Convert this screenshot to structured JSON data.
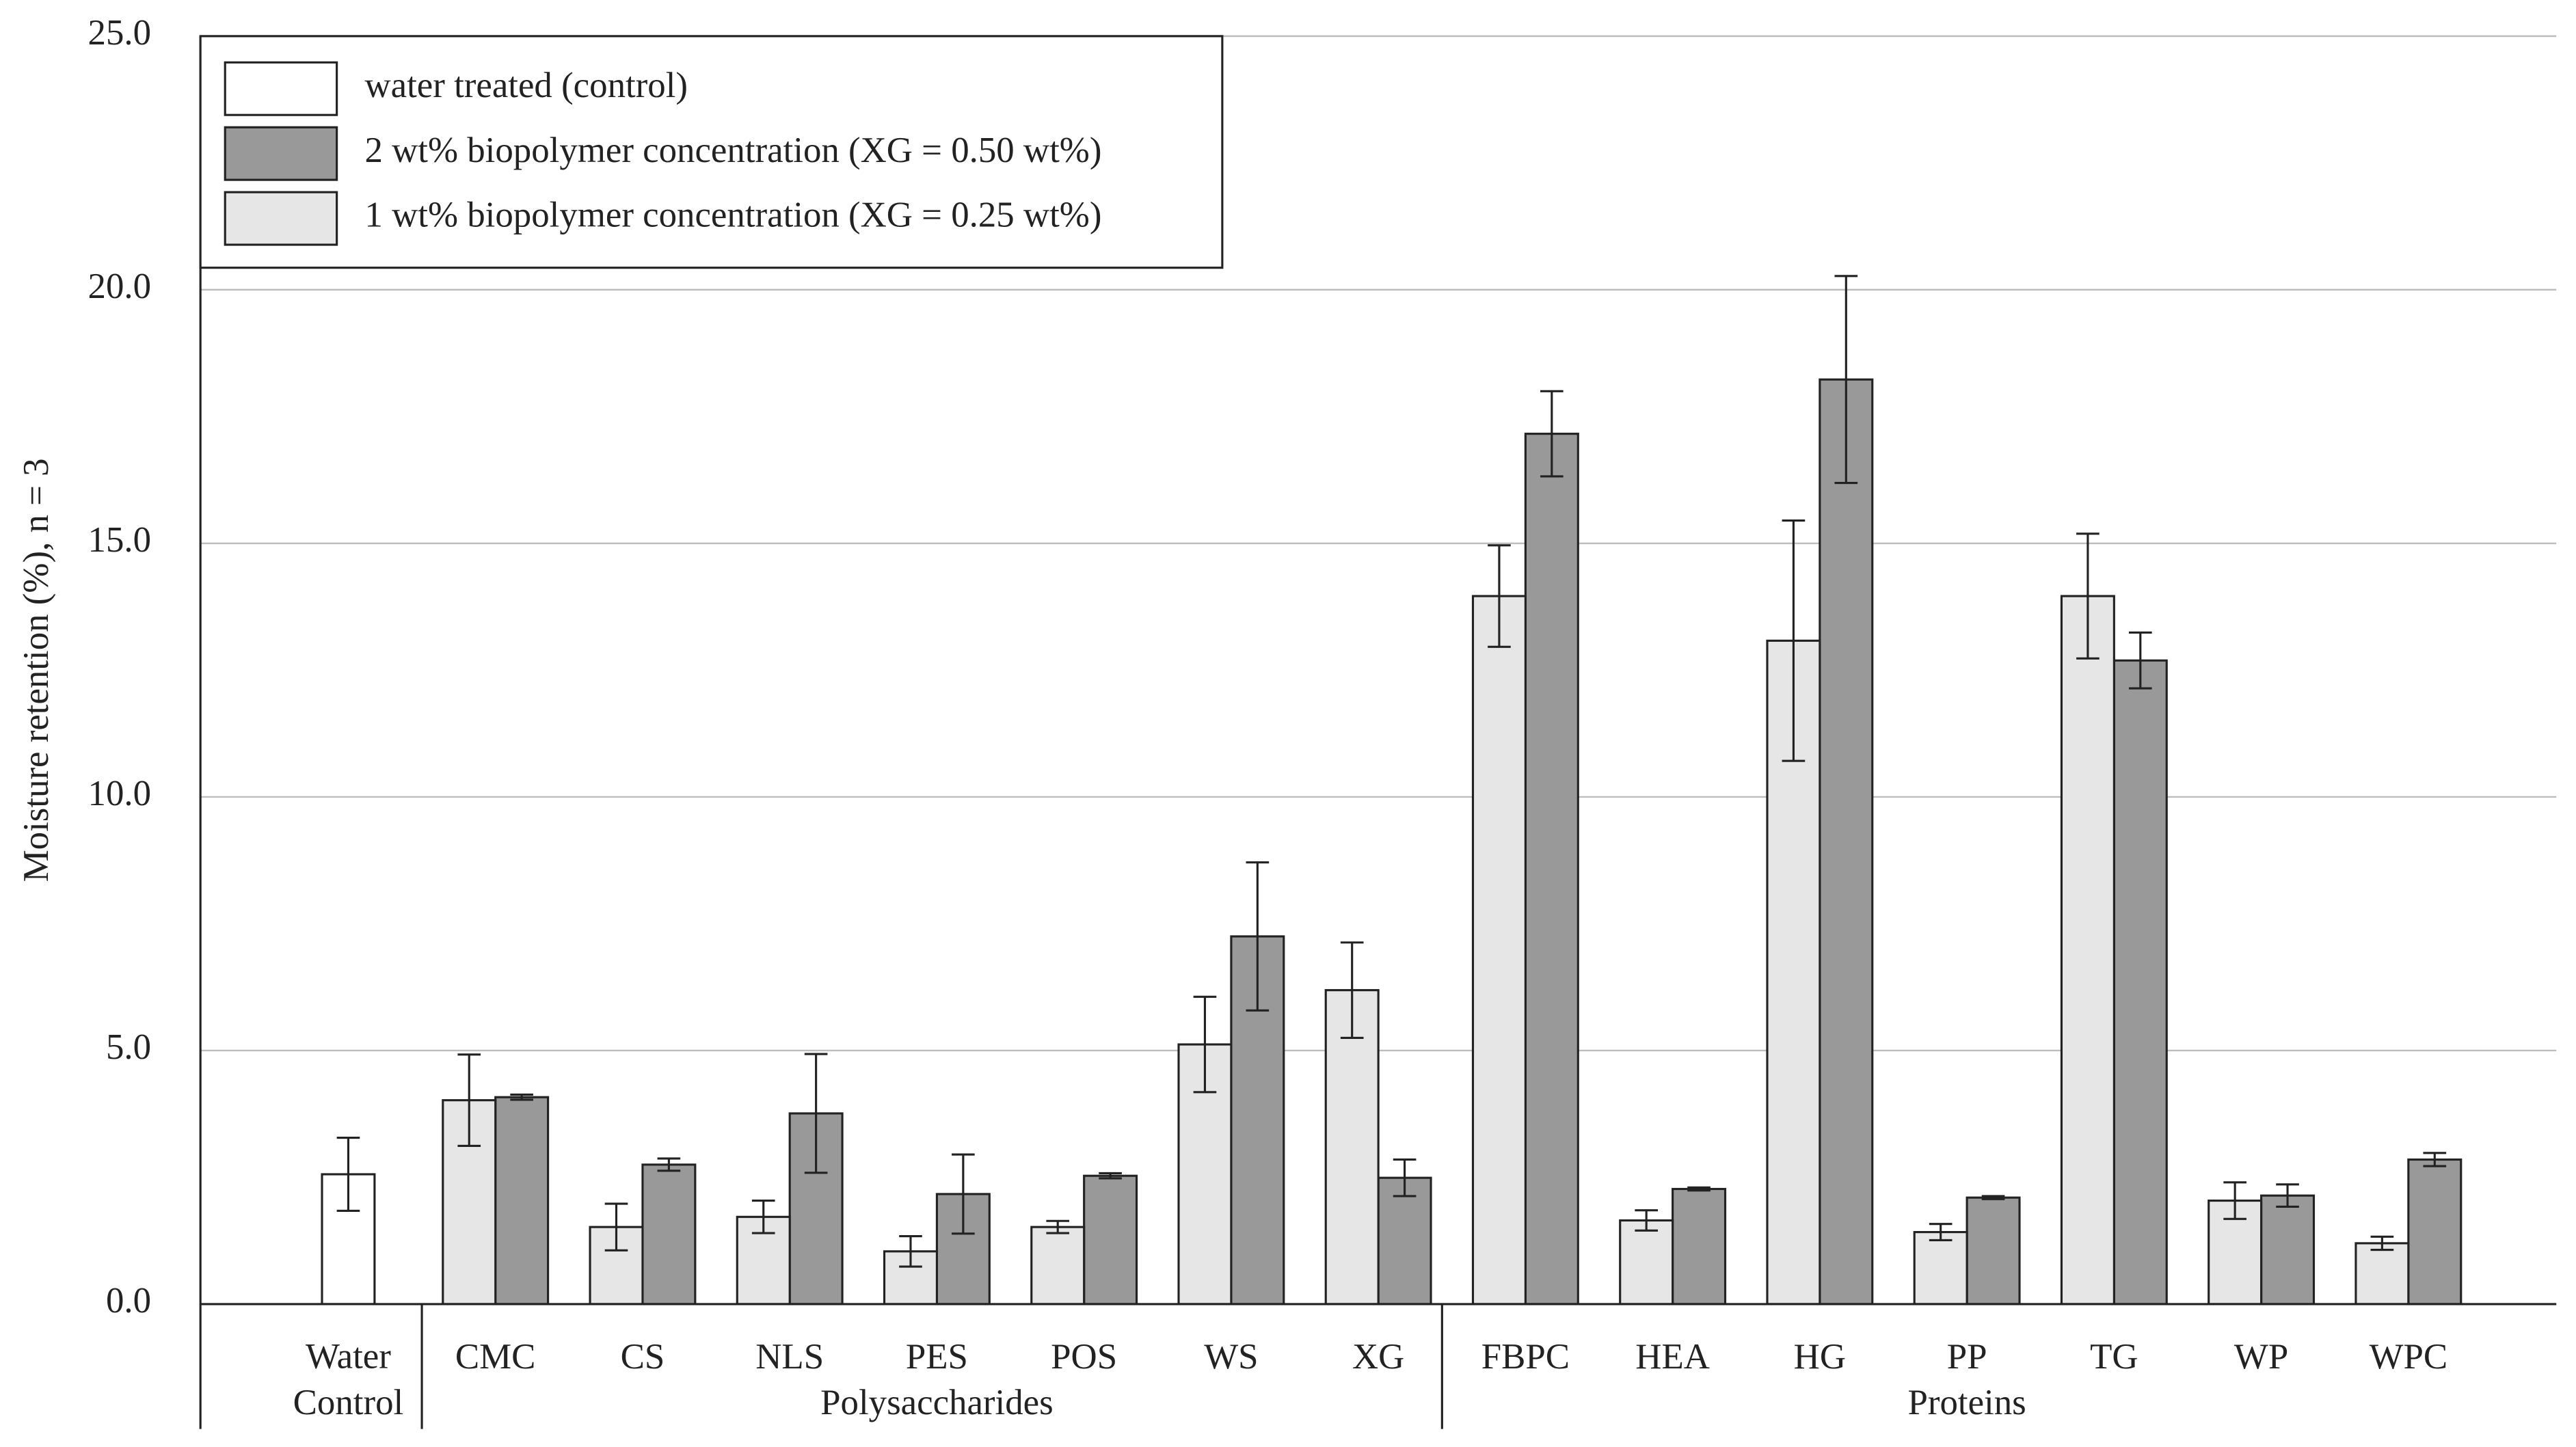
{
  "chart_data": {
    "type": "bar",
    "y_label": "Moisture retention (%), n = 3",
    "categories": [
      "Water Control",
      "CMC",
      "CS",
      "NLS",
      "PES",
      "POS",
      "WS",
      "XG",
      "FBPC",
      "HEA",
      "HG",
      "PP",
      "TG",
      "WP",
      "WPC"
    ],
    "groups": [
      {
        "name": "Polysaccharides",
        "first": "CMC",
        "last": "XG"
      },
      {
        "name": "Proteins",
        "first": "FBPC",
        "last": "WPC"
      }
    ],
    "series": [
      {
        "name": "water treated (control)",
        "color": "#ffffff",
        "values": [
          2.56,
          null,
          null,
          null,
          null,
          null,
          null,
          null,
          null,
          null,
          null,
          null,
          null,
          null,
          null
        ],
        "errors": [
          0.72,
          null,
          null,
          null,
          null,
          null,
          null,
          null,
          null,
          null,
          null,
          null,
          null,
          null,
          null
        ]
      },
      {
        "name": "2 wt% biopolymer concentration (XG = 0.50 wt%)",
        "color": "#999999",
        "values": [
          null,
          4.08,
          2.75,
          3.76,
          2.17,
          2.53,
          7.25,
          2.49,
          17.16,
          2.27,
          18.23,
          2.1,
          12.69,
          2.14,
          2.85
        ],
        "errors": [
          null,
          0.05,
          0.12,
          1.17,
          0.78,
          0.05,
          1.46,
          0.36,
          0.84,
          0.03,
          2.04,
          0.03,
          0.55,
          0.22,
          0.13
        ]
      },
      {
        "name": "1 wt% biopolymer concentration (XG = 0.25 wt%)",
        "color": "#e6e6e6",
        "values": [
          null,
          4.02,
          1.52,
          1.72,
          1.04,
          1.52,
          5.12,
          6.19,
          13.96,
          1.65,
          13.08,
          1.42,
          13.96,
          2.04,
          1.2
        ],
        "errors": [
          null,
          0.9,
          0.46,
          0.32,
          0.3,
          0.12,
          0.94,
          0.94,
          1.0,
          0.2,
          2.37,
          0.16,
          1.23,
          0.36,
          0.13
        ]
      }
    ],
    "ylim": [
      0,
      25
    ],
    "yticks": [
      {
        "value": 0,
        "label": "0.0"
      },
      {
        "value": 5,
        "label": "5.0"
      },
      {
        "value": 10,
        "label": "10.0"
      },
      {
        "value": 15,
        "label": "15.0"
      },
      {
        "value": 20,
        "label": "20.0"
      },
      {
        "value": 25,
        "label": "25.0"
      }
    ],
    "grid": true,
    "legend": "top-left"
  }
}
